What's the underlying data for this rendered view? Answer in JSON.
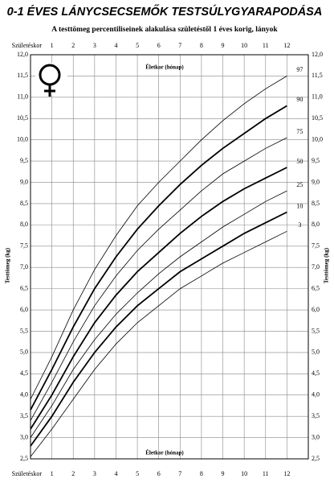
{
  "chart_data": {
    "type": "line",
    "title": "0-1 ÉVES LÁNYCSECSEMŐK TESTSÚLYGYARAPODÁSA",
    "subtitle": "A testtömeg percentiliseinek alakulása születéstől 1 éves korig, lányok",
    "xlabel": "Életkor (hónap)",
    "ylabel": "Testtömeg (kg)",
    "x": [
      0,
      1,
      2,
      3,
      4,
      5,
      6,
      7,
      8,
      9,
      10,
      11,
      12
    ],
    "xlim": [
      0,
      13
    ],
    "xticks": [
      {
        "value": 0,
        "label": "Születéskor"
      },
      1,
      2,
      3,
      4,
      5,
      6,
      7,
      8,
      9,
      10,
      11,
      12
    ],
    "ylim": [
      2.5,
      12
    ],
    "yticks": [
      {
        "value": 2.5,
        "label": "2,5"
      },
      {
        "value": 3,
        "label": "3,0"
      },
      {
        "value": 3.5,
        "label": "3,5"
      },
      {
        "value": 4,
        "label": "4,0"
      },
      {
        "value": 4.5,
        "label": "4,5"
      },
      {
        "value": 5,
        "label": "5,0"
      },
      {
        "value": 5.5,
        "label": "5,5"
      },
      {
        "value": 6,
        "label": "6,0"
      },
      {
        "value": 6.5,
        "label": "6,5"
      },
      {
        "value": 7,
        "label": "7,0"
      },
      {
        "value": 7.5,
        "label": "7,5"
      },
      {
        "value": 8,
        "label": "8,0"
      },
      {
        "value": 8.5,
        "label": "8,5"
      },
      {
        "value": 9,
        "label": "9,0"
      },
      {
        "value": 9.5,
        "label": "9,5"
      },
      {
        "value": 10,
        "label": "10,0"
      },
      {
        "value": 10.5,
        "label": "10,5"
      },
      {
        "value": 11,
        "label": "11,0"
      },
      {
        "value": 11.5,
        "label": "11,5"
      },
      {
        "value": 12,
        "label": "12,0"
      }
    ],
    "grid": true,
    "series": [
      {
        "name": "3",
        "color": "#000",
        "width": 0.8,
        "values": [
          2.55,
          3.2,
          3.9,
          4.6,
          5.2,
          5.7,
          6.1,
          6.5,
          6.8,
          7.1,
          7.35,
          7.6,
          7.85
        ]
      },
      {
        "name": "10",
        "color": "#000",
        "width": 1.8,
        "values": [
          2.8,
          3.5,
          4.3,
          5.0,
          5.6,
          6.1,
          6.5,
          6.9,
          7.2,
          7.5,
          7.8,
          8.05,
          8.3
        ]
      },
      {
        "name": "25",
        "color": "#000",
        "width": 0.8,
        "values": [
          3.0,
          3.75,
          4.6,
          5.3,
          5.9,
          6.4,
          6.85,
          7.25,
          7.6,
          7.95,
          8.25,
          8.55,
          8.8
        ]
      },
      {
        "name": "50",
        "color": "#000",
        "width": 1.8,
        "values": [
          3.2,
          4.0,
          4.9,
          5.7,
          6.35,
          6.9,
          7.35,
          7.8,
          8.2,
          8.55,
          8.85,
          9.1,
          9.35
        ]
      },
      {
        "name": "75",
        "color": "#000",
        "width": 0.8,
        "values": [
          3.4,
          4.3,
          5.25,
          6.1,
          6.8,
          7.4,
          7.9,
          8.35,
          8.8,
          9.2,
          9.5,
          9.8,
          10.05
        ]
      },
      {
        "name": "90",
        "color": "#000",
        "width": 1.8,
        "values": [
          3.65,
          4.6,
          5.6,
          6.5,
          7.25,
          7.9,
          8.45,
          8.95,
          9.4,
          9.8,
          10.15,
          10.5,
          10.8
        ]
      },
      {
        "name": "97",
        "color": "#000",
        "width": 0.8,
        "values": [
          3.9,
          4.9,
          6.0,
          6.95,
          7.75,
          8.45,
          9.0,
          9.5,
          10.0,
          10.45,
          10.85,
          11.2,
          11.5
        ]
      }
    ]
  }
}
